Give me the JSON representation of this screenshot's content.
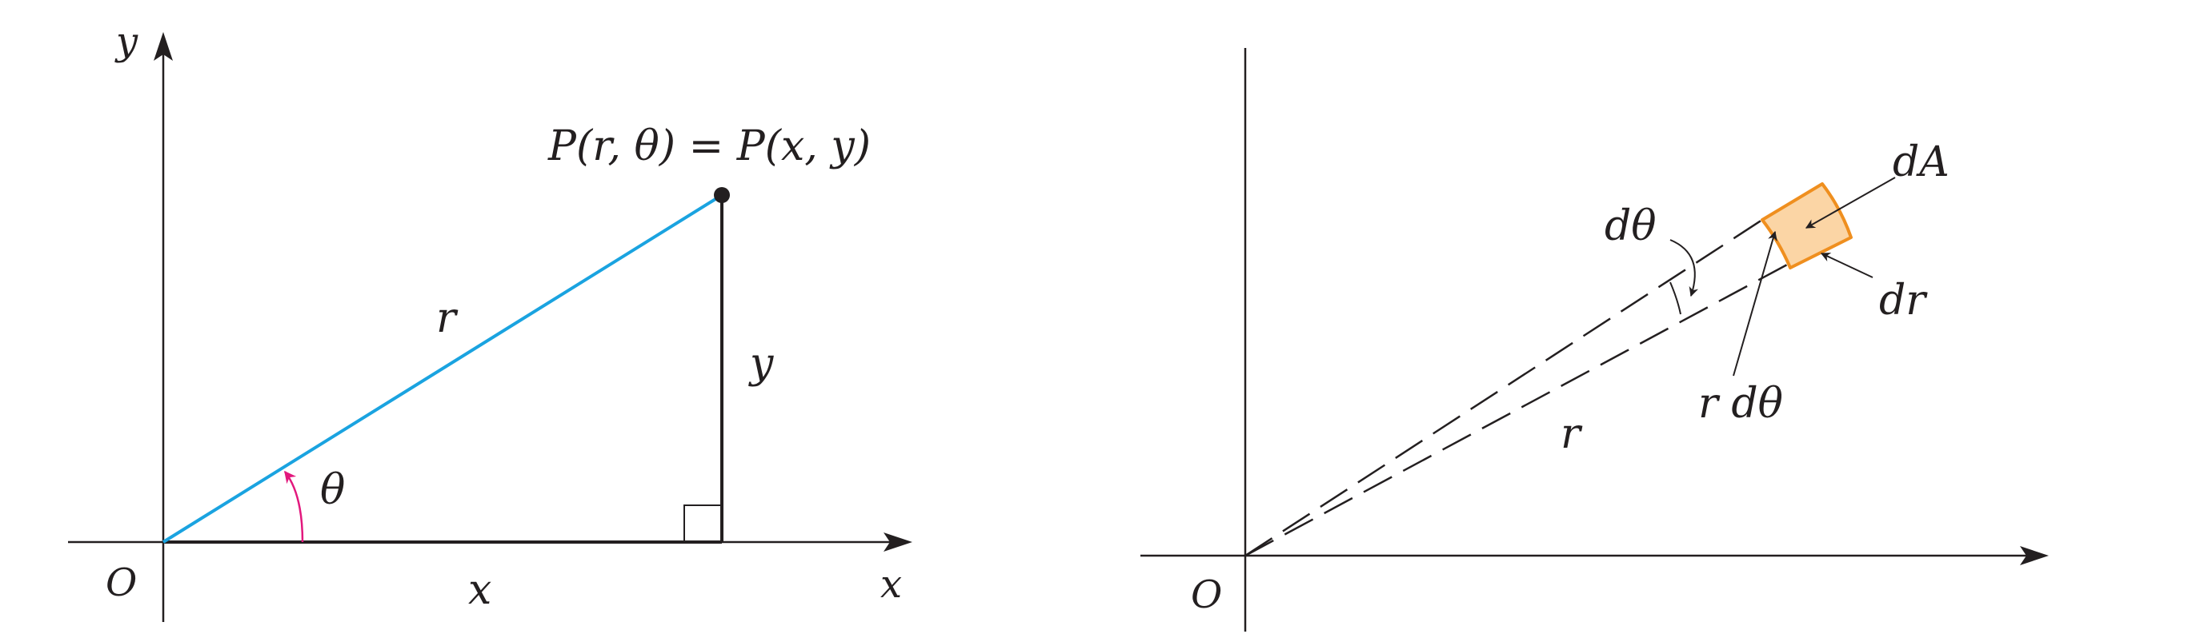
{
  "left": {
    "axis_y": "y",
    "axis_x": "x",
    "origin": "O",
    "point_label": "P(r, θ) = P(x, y)",
    "radius_label": "r",
    "vertical_leg_label": "y",
    "horizontal_leg_label": "x",
    "angle_label": "θ",
    "colors": {
      "radius": "#1aa3e0",
      "angle_arrow": "#e2187d",
      "ink": "#231f20"
    }
  },
  "right": {
    "origin": "O",
    "dtheta_label": "dθ",
    "dA_label": "dA",
    "dr_label": "dr",
    "rdtheta_label": "r dθ",
    "radius_label": "r",
    "colors": {
      "element_fill": "#fbd5a5",
      "element_stroke": "#ef8f1f",
      "ink": "#231f20"
    }
  }
}
